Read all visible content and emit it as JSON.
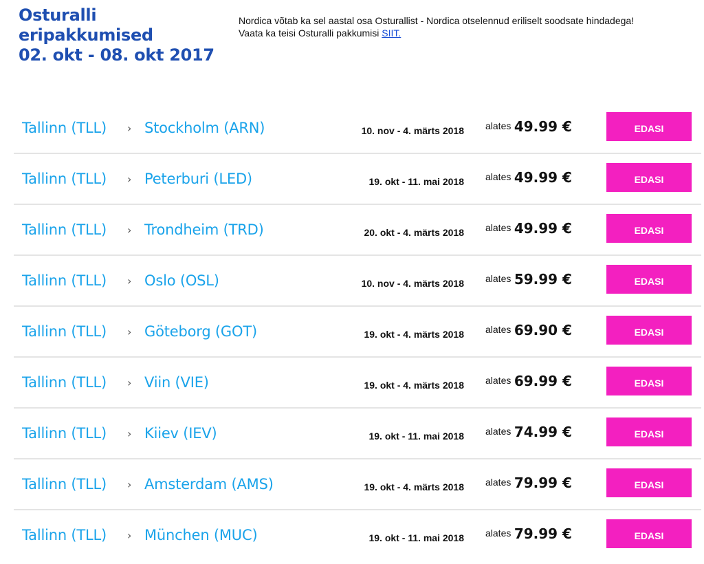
{
  "header": {
    "title_lines": [
      "Osturalli",
      "eripakkumised",
      "02. okt - 08. okt 2017"
    ],
    "intro_text": "Nordica võtab ka sel aastal osa Osturallist - Nordica otselennud eriliselt soodsate hindadega!",
    "more_prefix": "Vaata ka teisi Osturalli pakkumisi ",
    "more_link": "SIIT."
  },
  "offers": [
    {
      "origin": "Tallinn (TLL)",
      "arrow": "›",
      "destination": "Stockholm (ARN)",
      "dates": "10. nov - 4. märts 2018",
      "price_prefix": "alates",
      "price": "49.99 €",
      "button": "EDASI"
    },
    {
      "origin": "Tallinn (TLL)",
      "arrow": "›",
      "destination": "Peterburi (LED)",
      "dates": "19. okt - 11. mai 2018",
      "price_prefix": "alates",
      "price": "49.99 €",
      "button": "EDASI"
    },
    {
      "origin": "Tallinn (TLL)",
      "arrow": "›",
      "destination": "Trondheim (TRD)",
      "dates": "20. okt - 4. märts 2018",
      "price_prefix": "alates",
      "price": "49.99 €",
      "button": "EDASI"
    },
    {
      "origin": "Tallinn (TLL)",
      "arrow": "›",
      "destination": "Oslo (OSL)",
      "dates": "10. nov - 4. märts 2018",
      "price_prefix": "alates",
      "price": "59.99 €",
      "button": "EDASI"
    },
    {
      "origin": "Tallinn (TLL)",
      "arrow": "›",
      "destination": "Göteborg (GOT)",
      "dates": "19. okt - 4. märts 2018",
      "price_prefix": "alates",
      "price": "69.90 €",
      "button": "EDASI"
    },
    {
      "origin": "Tallinn (TLL)",
      "arrow": "›",
      "destination": "Viin (VIE)",
      "dates": "19. okt - 4. märts 2018",
      "price_prefix": "alates",
      "price": "69.99 €",
      "button": "EDASI"
    },
    {
      "origin": "Tallinn (TLL)",
      "arrow": "›",
      "destination": "Kiiev (IEV)",
      "dates": "19. okt - 11. mai 2018",
      "price_prefix": "alates",
      "price": "74.99 €",
      "button": "EDASI"
    },
    {
      "origin": "Tallinn (TLL)",
      "arrow": "›",
      "destination": "Amsterdam (AMS)",
      "dates": "19. okt - 4. märts 2018",
      "price_prefix": "alates",
      "price": "79.99 €",
      "button": "EDASI"
    },
    {
      "origin": "Tallinn (TLL)",
      "arrow": "›",
      "destination": "München (MUC)",
      "dates": "19. okt - 11. mai 2018",
      "price_prefix": "alates",
      "price": "79.99 €",
      "button": "EDASI"
    }
  ],
  "colors": {
    "title": "#1f4fb1",
    "route": "#1aa3ea",
    "button": "#f320c0",
    "link": "#1a4fd6",
    "divider": "#e4e4e4"
  }
}
